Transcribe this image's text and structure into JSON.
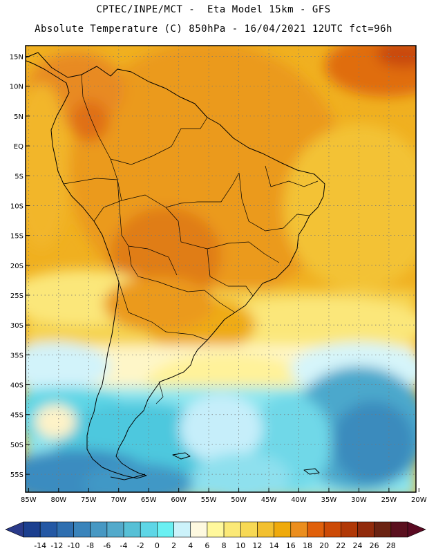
{
  "header": {
    "line1": "CPTEC/INPE/MCT -  Eta Model 15km - GFS",
    "line2": "Absolute Temperature (C) 850hPa - 16/04/2021 12UTC fct=96h"
  },
  "map": {
    "lat_labels": [
      "15N",
      "10N",
      "5N",
      "EQ",
      "5S",
      "10S",
      "15S",
      "20S",
      "25S",
      "30S",
      "35S",
      "40S",
      "45S",
      "50S",
      "55S"
    ],
    "lon_labels": [
      "85W",
      "80W",
      "75W",
      "70W",
      "65W",
      "60W",
      "55W",
      "50W",
      "45W",
      "40W",
      "35W",
      "30W",
      "25W",
      "20W"
    ],
    "lat_values": [
      15,
      10,
      5,
      0,
      -5,
      -10,
      -15,
      -20,
      -25,
      -30,
      -35,
      -40,
      -45,
      -50,
      -55
    ],
    "lon_values": [
      -85,
      -80,
      -75,
      -70,
      -65,
      -60,
      -55,
      -50,
      -45,
      -40,
      -35,
      -30,
      -25,
      -20
    ],
    "extent": {
      "lon_min": -85.5,
      "lon_max": -20.5,
      "lat_min": -58,
      "lat_max": 16.8
    },
    "grid": true
  },
  "colorbar": {
    "labels": [
      "-14",
      "-12",
      "-10",
      "-8",
      "-6",
      "-4",
      "-2",
      "0",
      "2",
      "4",
      "6",
      "8",
      "10",
      "12",
      "14",
      "16",
      "18",
      "20",
      "22",
      "24",
      "26",
      "28"
    ],
    "colors": [
      "#1b3f8f",
      "#2458a4",
      "#2f6fb0",
      "#3a84bb",
      "#4798c3",
      "#53aacb",
      "#57c0d6",
      "#5ed6e6",
      "#6af0f2",
      "#ccf2fa",
      "#fef9e0",
      "#fff89c",
      "#fbe977",
      "#f7d955",
      "#f2c030",
      "#efaa0c",
      "#eb8e1e",
      "#e0600b",
      "#cc4a06",
      "#b03806",
      "#912b0c",
      "#6b2312",
      "#5a101e"
    ],
    "under_color": "#2a3a8a",
    "over_color": "#5a0a22"
  }
}
